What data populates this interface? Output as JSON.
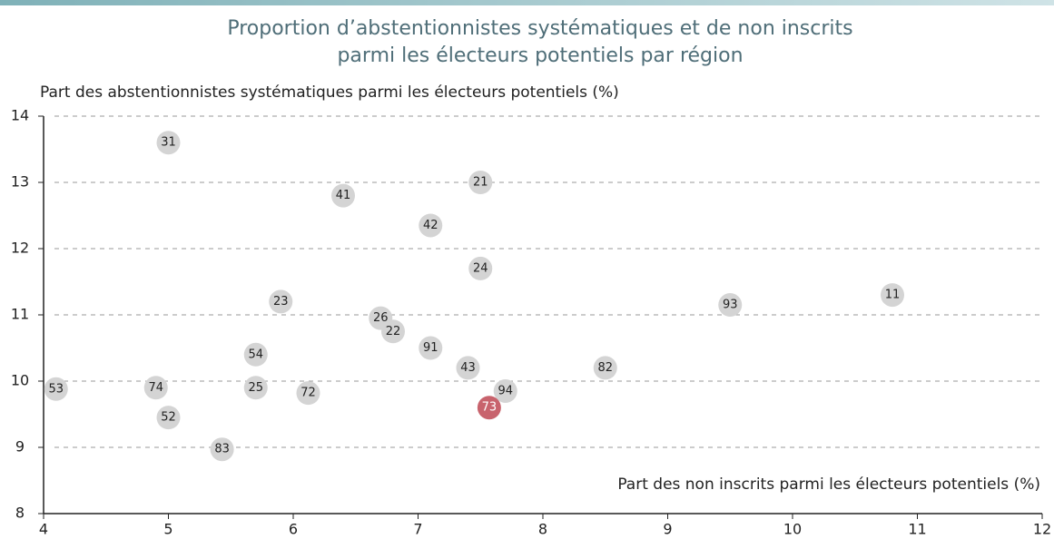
{
  "chart_data": {
    "type": "scatter",
    "title": [
      "Proportion d’abstentionnistes systématiques et de non inscrits",
      "parmi les électeurs potentiels par région"
    ],
    "y_label": "Part des abstentionnistes systématiques parmi les électeurs potentiels (%)",
    "x_label": "Part des non inscrits parmi les électeurs potentiels (%)",
    "labels": [
      "31",
      "21",
      "41",
      "42",
      "24",
      "23",
      "93",
      "11",
      "26",
      "22",
      "54",
      "91",
      "43",
      "82",
      "53",
      "74",
      "25",
      "72",
      "94",
      "73",
      "52",
      "83"
    ],
    "x": [
      5.0,
      7.5,
      6.4,
      7.1,
      7.5,
      5.9,
      9.5,
      10.8,
      6.7,
      6.8,
      5.7,
      7.1,
      7.4,
      8.5,
      4.1,
      4.9,
      5.7,
      6.12,
      7.7,
      7.57,
      5.0,
      5.43
    ],
    "y": [
      13.6,
      13.0,
      12.8,
      12.35,
      11.7,
      11.2,
      11.15,
      11.3,
      10.95,
      10.75,
      10.4,
      10.5,
      10.2,
      10.2,
      9.88,
      9.9,
      9.9,
      9.82,
      9.85,
      9.6,
      9.45,
      8.97
    ],
    "point_colors": [
      "#d4d4d4",
      "#d4d4d4",
      "#d4d4d4",
      "#d4d4d4",
      "#d4d4d4",
      "#d4d4d4",
      "#d4d4d4",
      "#d4d4d4",
      "#d4d4d4",
      "#d4d4d4",
      "#d4d4d4",
      "#d4d4d4",
      "#d4d4d4",
      "#d4d4d4",
      "#d4d4d4",
      "#d4d4d4",
      "#d4d4d4",
      "#d4d4d4",
      "#d4d4d4",
      "#c8636d",
      "#d4d4d4",
      "#d4d4d4"
    ],
    "xlim": [
      4,
      12
    ],
    "xticks": [
      4,
      5,
      6,
      7,
      8,
      9,
      10,
      11,
      12
    ],
    "ylim": [
      8,
      14
    ],
    "yticks": [
      8,
      9,
      10,
      11,
      12,
      13,
      14
    ],
    "grid": true
  }
}
